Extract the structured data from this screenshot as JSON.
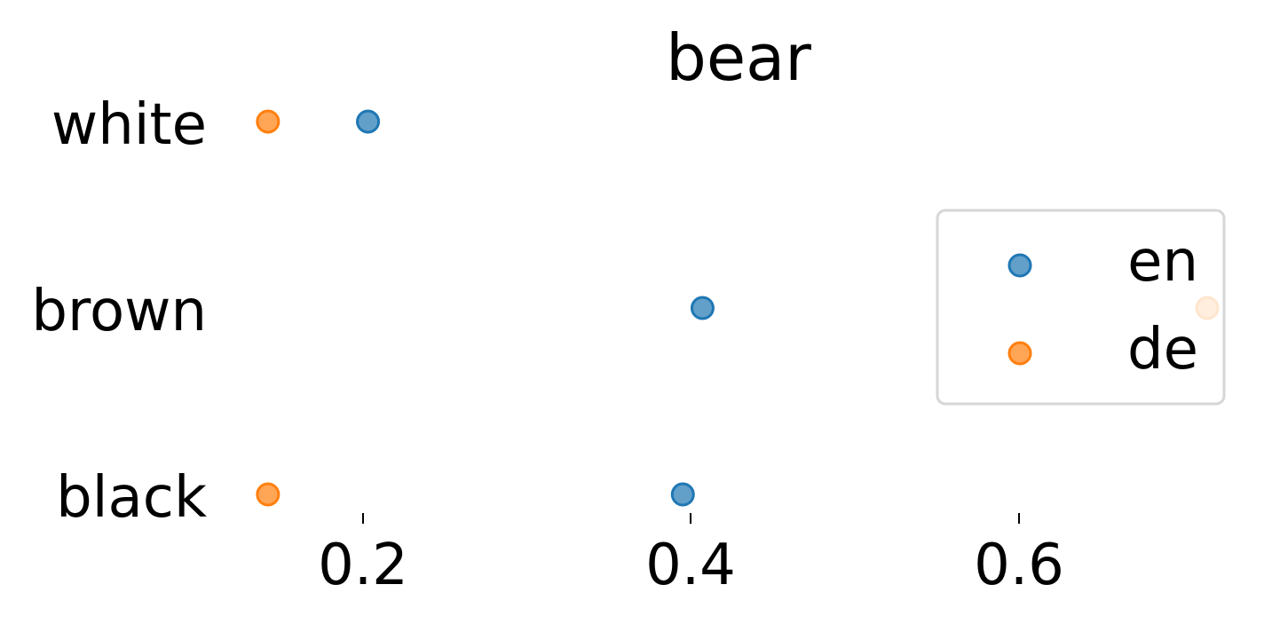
{
  "chart_data": {
    "type": "scatter",
    "title": "bear",
    "categories": [
      "white",
      "brown",
      "black"
    ],
    "xlim": [
      0.135,
      0.735
    ],
    "xticks": [
      0.2,
      0.4,
      0.6
    ],
    "xtick_labels": [
      "0.2",
      "0.4",
      "0.6"
    ],
    "xlabel": "",
    "ylabel": "",
    "grid": false,
    "legend_position": "right",
    "series": [
      {
        "name": "en",
        "color": "#1f77b4",
        "values": [
          0.203,
          0.407,
          0.395
        ]
      },
      {
        "name": "de",
        "color": "#ff7f0e",
        "values": [
          0.142,
          0.728,
          0.142
        ]
      }
    ]
  }
}
